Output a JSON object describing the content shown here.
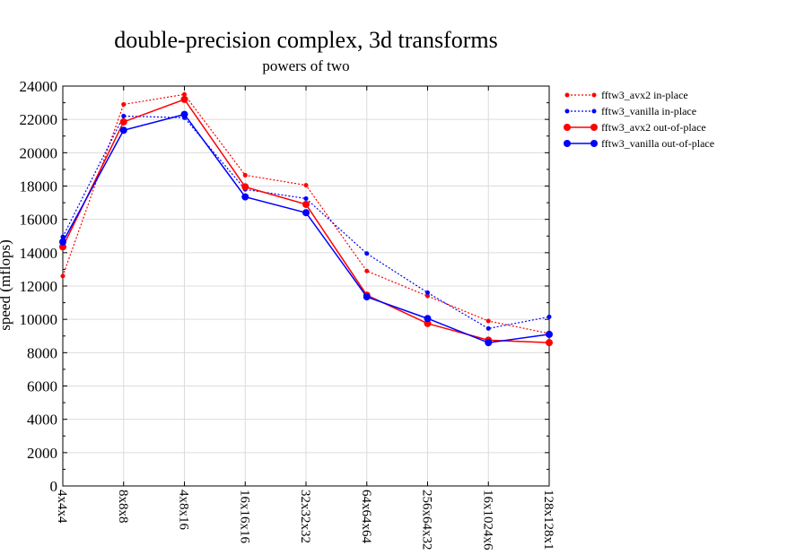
{
  "chart_data": {
    "type": "line",
    "title": "double-precision complex, 3d transforms",
    "subtitle": "powers of two",
    "ylabel": "speed (mflops)",
    "xlabel": "",
    "categories": [
      "4x4x4",
      "8x8x8",
      "4x8x16",
      "16x16x16",
      "32x32x32",
      "64x64x64",
      "256x64x32",
      "16x1024x6",
      "128x128x1"
    ],
    "ylim": [
      0,
      24000
    ],
    "yticks": [
      0,
      2000,
      4000,
      6000,
      8000,
      10000,
      12000,
      14000,
      16000,
      18000,
      20000,
      22000,
      24000
    ],
    "grid": true,
    "legend_position": "top-right outside",
    "series": [
      {
        "name": "fftw3_avx2 in-place",
        "color": "#ff0000",
        "style": "dotted",
        "marker": "small",
        "values": [
          12600,
          22900,
          23500,
          18650,
          18050,
          12900,
          11400,
          9900,
          9150
        ]
      },
      {
        "name": "fftw3_vanilla in-place",
        "color": "#0000ff",
        "style": "dotted",
        "marker": "small",
        "values": [
          14950,
          22200,
          22100,
          17800,
          17250,
          13950,
          11600,
          9450,
          10150
        ]
      },
      {
        "name": "fftw3_avx2 out-of-place",
        "color": "#ff0000",
        "style": "solid",
        "marker": "large",
        "values": [
          14350,
          21850,
          23200,
          17950,
          16900,
          11450,
          9750,
          8750,
          8600
        ]
      },
      {
        "name": "fftw3_vanilla out-of-place",
        "color": "#0000ff",
        "style": "solid",
        "marker": "large",
        "values": [
          14650,
          21350,
          22300,
          17350,
          16400,
          11350,
          10050,
          8600,
          9100
        ]
      }
    ]
  }
}
